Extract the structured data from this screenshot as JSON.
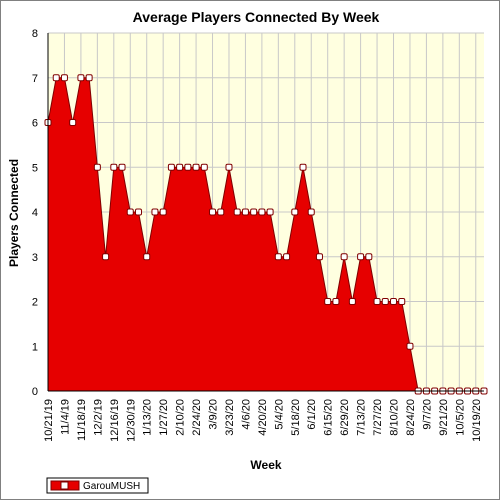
{
  "chart_data": {
    "type": "area",
    "title": "Average Players Connected By Week",
    "xlabel": "Week",
    "ylabel": "Players Connected",
    "ylim": [
      0,
      8
    ],
    "yticks": [
      0,
      1,
      2,
      3,
      4,
      5,
      6,
      7,
      8
    ],
    "xtick_labels": [
      "10/21/19",
      "11/4/19",
      "11/18/19",
      "12/2/19",
      "12/16/19",
      "12/30/19",
      "1/13/20",
      "1/27/20",
      "2/10/20",
      "2/24/20",
      "3/9/20",
      "3/23/20",
      "4/6/20",
      "4/20/20",
      "5/4/20",
      "5/18/20",
      "6/1/20",
      "6/15/20",
      "6/29/20",
      "7/13/20",
      "7/27/20",
      "8/10/20",
      "8/24/20",
      "9/7/20",
      "9/21/20",
      "10/5/20",
      "10/19/20"
    ],
    "grid": true,
    "legend_position": "bottom-left",
    "series": [
      {
        "name": "GarouMUSH",
        "values": [
          6,
          7,
          7,
          6,
          7,
          7,
          5,
          3,
          5,
          5,
          4,
          4,
          3,
          4,
          4,
          5,
          5,
          5,
          5,
          5,
          4,
          4,
          5,
          4,
          4,
          4,
          4,
          4,
          3,
          3,
          4,
          5,
          4,
          3,
          2,
          2,
          3,
          2,
          3,
          3,
          2,
          2,
          2,
          2,
          1,
          0,
          0,
          0,
          0,
          0,
          0,
          0,
          0,
          0
        ]
      }
    ],
    "colors": {
      "fill": "#e60000",
      "line": "#800000",
      "marker_fill": "#ffffff",
      "plot_background": "#ffffe0",
      "grid": "#c8c8c8"
    }
  }
}
